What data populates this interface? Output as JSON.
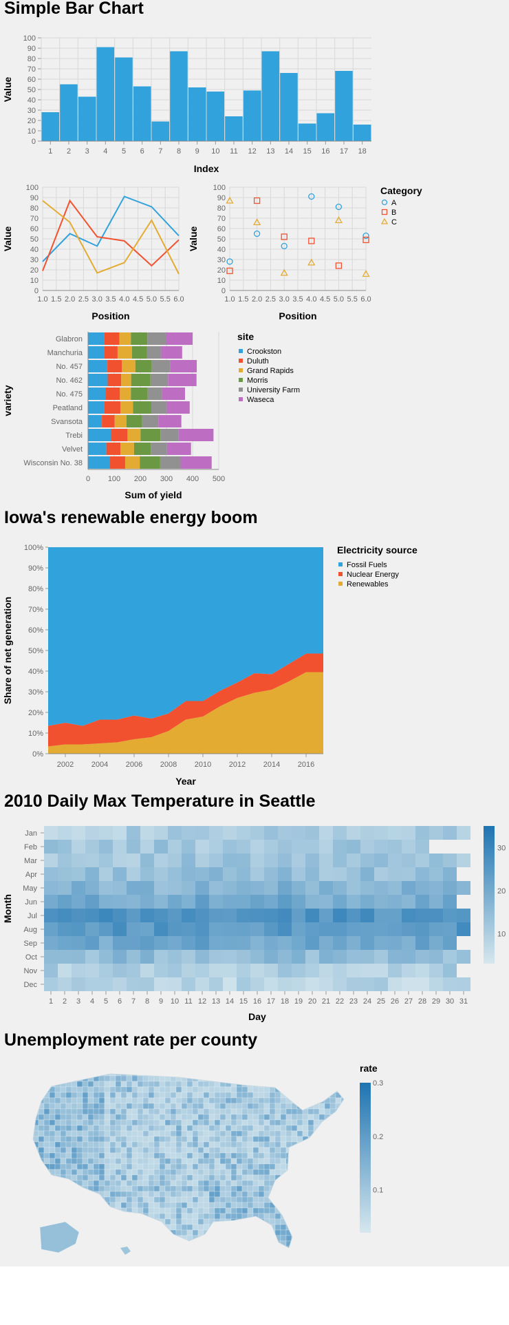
{
  "titles": {
    "bar": "Simple Bar Chart",
    "area": "Iowa's renewable energy boom",
    "heat": "2010 Daily Max Temperature in Seattle",
    "map": "Unemployment rate per county"
  },
  "colors": {
    "blue": "#31a2dc",
    "red": "#f2512f",
    "yellow": "#e3ab31",
    "green": "#6b9943",
    "gray": "#919191",
    "purple": "#bd6dc2",
    "grid": "#d8d8d8",
    "background": "#f0f0f0"
  },
  "chart_data": [
    {
      "id": "bar",
      "type": "bar",
      "title": "Simple Bar Chart",
      "xlabel": "Index",
      "ylabel": "Value",
      "categories": [
        "1",
        "2",
        "3",
        "4",
        "5",
        "6",
        "7",
        "8",
        "9",
        "10",
        "11",
        "12",
        "13",
        "14",
        "15",
        "16",
        "17",
        "18"
      ],
      "values": [
        28,
        55,
        43,
        91,
        81,
        53,
        19,
        87,
        52,
        48,
        24,
        49,
        87,
        66,
        17,
        27,
        68,
        16
      ],
      "ylim": [
        0,
        100
      ],
      "yticks": [
        0,
        10,
        20,
        30,
        40,
        50,
        60,
        70,
        80,
        90,
        100
      ],
      "grid": true
    },
    {
      "id": "line",
      "type": "line",
      "xlabel": "Position",
      "ylabel": "Value",
      "xlim": [
        1,
        6
      ],
      "ylim": [
        0,
        100
      ],
      "xticks": [
        "1.0",
        "1.5",
        "2.0",
        "2.5",
        "3.0",
        "3.5",
        "4.0",
        "4.5",
        "5.0",
        "5.5",
        "6.0"
      ],
      "yticks": [
        0,
        10,
        20,
        30,
        40,
        50,
        60,
        70,
        80,
        90,
        100
      ],
      "x": [
        1,
        2,
        3,
        4,
        5,
        6
      ],
      "series": [
        {
          "values": [
            28,
            55,
            43,
            91,
            81,
            53
          ],
          "color": "#31a2dc"
        },
        {
          "values": [
            19,
            87,
            52,
            48,
            24,
            49
          ],
          "color": "#f2512f"
        },
        {
          "values": [
            87,
            66,
            17,
            27,
            68,
            16
          ],
          "color": "#e3ab31"
        }
      ],
      "grid": true
    },
    {
      "id": "scatter",
      "type": "scatter",
      "xlabel": "Position",
      "ylabel": "Value",
      "xlim": [
        1,
        6
      ],
      "ylim": [
        0,
        100
      ],
      "xticks": [
        "1.0",
        "1.5",
        "2.0",
        "2.5",
        "3.0",
        "3.5",
        "4.0",
        "4.5",
        "5.0",
        "5.5",
        "6.0"
      ],
      "yticks": [
        0,
        10,
        20,
        30,
        40,
        50,
        60,
        70,
        80,
        90,
        100
      ],
      "x": [
        1,
        2,
        3,
        4,
        5,
        6
      ],
      "legend_title": "Category",
      "legend_position": "right",
      "series": [
        {
          "name": "A",
          "values": [
            28,
            55,
            43,
            91,
            81,
            53
          ],
          "color": "#31a2dc",
          "shape": "circle"
        },
        {
          "name": "B",
          "values": [
            19,
            87,
            52,
            48,
            24,
            49
          ],
          "color": "#f2512f",
          "shape": "square"
        },
        {
          "name": "C",
          "values": [
            87,
            66,
            17,
            27,
            68,
            16
          ],
          "color": "#e3ab31",
          "shape": "triangle"
        }
      ],
      "grid": true
    },
    {
      "id": "stacked",
      "type": "bar",
      "orientation": "horizontal-stacked",
      "xlabel": "Sum of yield",
      "ylabel": "variety",
      "xlim": [
        0,
        500
      ],
      "xticks": [
        0,
        100,
        200,
        300,
        400,
        500
      ],
      "categories": [
        "Glabron",
        "Manchuria",
        "No. 457",
        "No. 462",
        "No. 475",
        "Peatland",
        "Svansota",
        "Trebi",
        "Velvet",
        "Wisconsin No. 38"
      ],
      "legend_title": "site",
      "legend_position": "right",
      "series": [
        {
          "name": "Crookston",
          "color": "#31a2dc",
          "values": [
            63,
            62,
            74,
            75,
            67,
            61,
            53,
            87,
            70,
            83
          ]
        },
        {
          "name": "Duluth",
          "color": "#f2512f",
          "values": [
            57,
            51,
            55,
            52,
            55,
            63,
            49,
            64,
            54,
            59
          ]
        },
        {
          "name": "Grand Rapids",
          "color": "#e3ab31",
          "values": [
            44,
            55,
            52,
            38,
            42,
            48,
            45,
            50,
            52,
            56
          ]
        },
        {
          "name": "Morris",
          "color": "#6b9943",
          "values": [
            63,
            58,
            63,
            74,
            64,
            70,
            60,
            76,
            64,
            78
          ]
        },
        {
          "name": "University Farm",
          "color": "#919191",
          "values": [
            73,
            54,
            71,
            67,
            56,
            59,
            62,
            70,
            62,
            78
          ]
        },
        {
          "name": "Waseca",
          "color": "#bd6dc2",
          "values": [
            100,
            80,
            101,
            109,
            87,
            88,
            88,
            133,
            92,
            119
          ]
        }
      ],
      "grid": true
    },
    {
      "id": "area",
      "type": "area",
      "title": "Iowa's renewable energy boom",
      "xlabel": "Year",
      "ylabel": "Share of net generation",
      "xlim": [
        2001,
        2017
      ],
      "xticks": [
        2002,
        2004,
        2006,
        2008,
        2010,
        2012,
        2014,
        2016
      ],
      "ylim": [
        0,
        1
      ],
      "yticks": [
        "0%",
        "10%",
        "20%",
        "30%",
        "40%",
        "50%",
        "60%",
        "70%",
        "80%",
        "90%",
        "100%"
      ],
      "legend_title": "Electricity source",
      "legend_position": "right",
      "x": [
        2001,
        2002,
        2003,
        2004,
        2005,
        2006,
        2007,
        2008,
        2009,
        2010,
        2011,
        2012,
        2013,
        2014,
        2015,
        2016,
        2017
      ],
      "series": [
        {
          "name": "Fossil Fuels",
          "color": "#31a2dc",
          "values": [
            0.865,
            0.85,
            0.865,
            0.835,
            0.835,
            0.815,
            0.83,
            0.805,
            0.745,
            0.745,
            0.695,
            0.655,
            0.61,
            0.615,
            0.565,
            0.515,
            0.515
          ]
        },
        {
          "name": "Nuclear Energy",
          "color": "#f2512f",
          "values": [
            0.1,
            0.105,
            0.09,
            0.115,
            0.11,
            0.115,
            0.09,
            0.085,
            0.09,
            0.075,
            0.075,
            0.075,
            0.095,
            0.075,
            0.085,
            0.09,
            0.09
          ]
        },
        {
          "name": "Renewables",
          "color": "#e3ab31",
          "values": [
            0.035,
            0.045,
            0.045,
            0.05,
            0.055,
            0.07,
            0.08,
            0.11,
            0.165,
            0.18,
            0.23,
            0.27,
            0.295,
            0.31,
            0.35,
            0.395,
            0.395
          ]
        }
      ],
      "grid": true
    },
    {
      "id": "heatmap",
      "type": "heatmap",
      "title": "2010 Daily Max Temperature in Seattle",
      "xlabel": "Day",
      "ylabel": "Month",
      "x": [
        1,
        2,
        3,
        4,
        5,
        6,
        7,
        8,
        9,
        10,
        11,
        12,
        13,
        14,
        15,
        16,
        17,
        18,
        19,
        20,
        21,
        22,
        23,
        24,
        25,
        26,
        27,
        28,
        29,
        30,
        31
      ],
      "y": [
        "Jan",
        "Feb",
        "Mar",
        "Apr",
        "May",
        "Jun",
        "Jul",
        "Aug",
        "Sep",
        "Oct",
        "Nov",
        "Dec"
      ],
      "monthly_mean": [
        10,
        12,
        12,
        14,
        17,
        20,
        26,
        25,
        21,
        15,
        10,
        8
      ],
      "month_days": [
        31,
        28,
        31,
        30,
        31,
        30,
        31,
        31,
        30,
        31,
        30,
        31
      ],
      "color_range": [
        3,
        35
      ],
      "legend_ticks": [
        10,
        20,
        30
      ],
      "legend_position": "right"
    },
    {
      "id": "choropleth",
      "type": "choropleth",
      "title": "Unemployment rate per county",
      "legend_title": "rate",
      "legend_ticks": [
        "0.3",
        "0.2",
        "0.1"
      ],
      "color_range": [
        0.02,
        0.3
      ],
      "legend_position": "top-right"
    }
  ]
}
